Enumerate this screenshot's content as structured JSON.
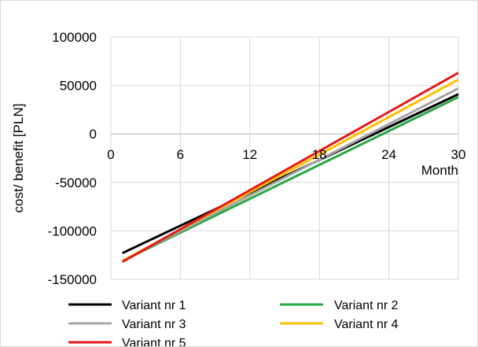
{
  "chart_data": {
    "type": "line",
    "title": "",
    "xlabel": "Month",
    "ylabel": "cost/ benefit [PLN]",
    "xlim": [
      0,
      30
    ],
    "ylim": [
      -150000,
      100000
    ],
    "xticks": [
      0,
      6,
      12,
      18,
      24,
      30
    ],
    "yticks": [
      100000,
      50000,
      0,
      -50000,
      -100000,
      -150000
    ],
    "xtick_labels": [
      "0",
      "6",
      "12",
      "18",
      "24",
      "30"
    ],
    "ytick_labels": [
      "100000",
      "50000",
      "0",
      "-50000",
      "-100000",
      "-150000"
    ],
    "grid": true,
    "legend_position": "bottom",
    "series": [
      {
        "name": "Variant nr 1",
        "color": "#000000",
        "x": [
          1,
          30
        ],
        "y": [
          -123000,
          41000
        ]
      },
      {
        "name": "Variant nr 2",
        "color": "#27a845",
        "x": [
          1,
          30
        ],
        "y": [
          -131000,
          38000
        ]
      },
      {
        "name": "Variant nr 3",
        "color": "#a6a6a6",
        "x": [
          1,
          30
        ],
        "y": [
          -131000,
          47000
        ]
      },
      {
        "name": "Variant nr 4",
        "color": "#ffc000",
        "x": [
          1,
          30
        ],
        "y": [
          -131000,
          56000
        ]
      },
      {
        "name": "Variant nr 5",
        "color": "#e31a1c",
        "x": [
          1,
          30
        ],
        "y": [
          -132000,
          63000
        ]
      }
    ]
  }
}
